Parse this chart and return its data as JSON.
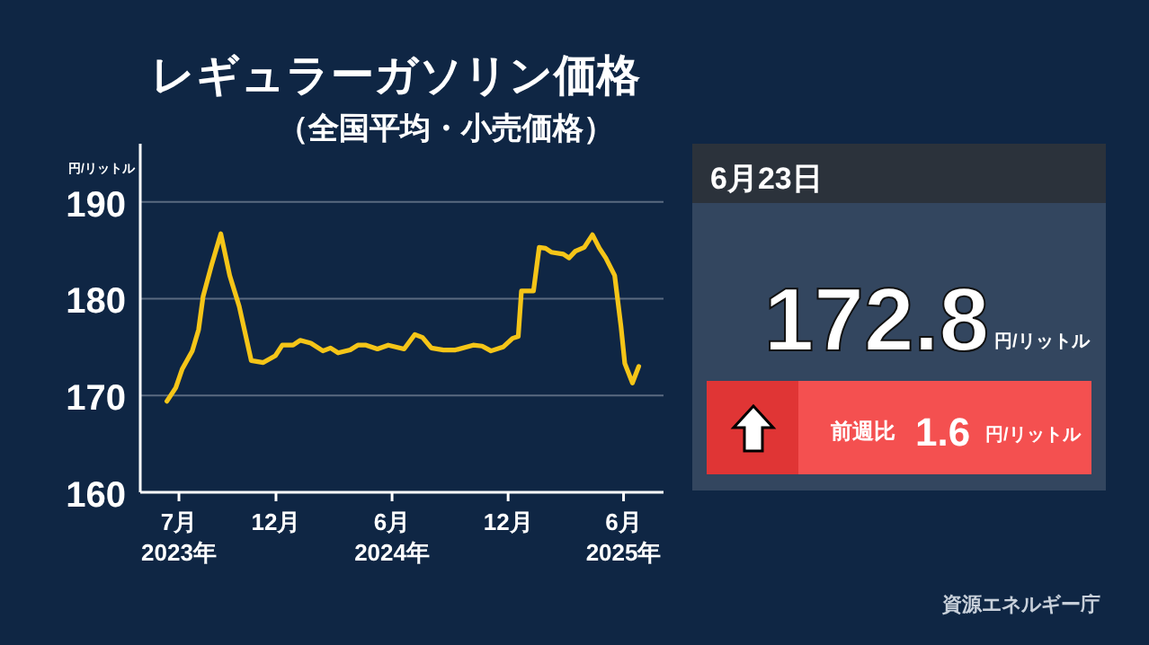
{
  "chart_data": [
    {
      "type": "line",
      "title": "レギュラーガソリン価格",
      "subtitle": "（全国平均・小売価格）",
      "ylabel": "円/リットル",
      "annotations": [
        "資源エネルギー庁"
      ],
      "xlim": [
        "2023-05-01",
        "2025-08-03"
      ],
      "ylim": [
        160,
        196
      ],
      "xticks": [
        {
          "value": "2023-07-01",
          "label": "7月\n2023年"
        },
        {
          "value": "2023-12-01",
          "label": "12月"
        },
        {
          "value": "2024-06-01",
          "label": "6月\n2024年"
        },
        {
          "value": "2024-12-01",
          "label": "12月"
        },
        {
          "value": "2025-06-01",
          "label": "6月\n2025年"
        }
      ],
      "yticks": [
        160,
        170,
        180,
        190
      ],
      "grid": "y",
      "series": [
        {
          "color": "#f5c518",
          "x": [
            "2023-06-12",
            "2023-06-26",
            "2023-07-06",
            "2023-07-22",
            "2023-08-01",
            "2023-08-08",
            "2023-08-22",
            "2023-09-05",
            "2023-09-19",
            "2023-10-04",
            "2023-10-23",
            "2023-11-11",
            "2023-11-30",
            "2023-12-11",
            "2023-12-28",
            "2024-01-08",
            "2024-01-25",
            "2024-02-13",
            "2024-02-25",
            "2024-03-08",
            "2024-03-27",
            "2024-04-08",
            "2024-04-21",
            "2024-05-09",
            "2024-05-26",
            "2024-06-20",
            "2024-07-07",
            "2024-07-19",
            "2024-08-02",
            "2024-08-21",
            "2024-09-09",
            "2024-10-07",
            "2024-10-21",
            "2024-11-04",
            "2024-11-23",
            "2024-12-08",
            "2024-12-17",
            "2024-12-22",
            "2025-01-10",
            "2025-01-19",
            "2025-01-29",
            "2025-02-07",
            "2025-02-26",
            "2025-03-07",
            "2025-03-17",
            "2025-03-31",
            "2025-04-13",
            "2025-04-24",
            "2025-05-04",
            "2025-05-18",
            "2025-05-28",
            "2025-06-03",
            "2025-06-15",
            "2025-06-25"
          ],
          "values": [
            169.4,
            170.8,
            172.7,
            174.6,
            176.8,
            180.2,
            183.6,
            186.7,
            182.4,
            179.2,
            173.6,
            173.4,
            174.1,
            175.2,
            175.2,
            175.7,
            175.4,
            174.6,
            174.9,
            174.4,
            174.7,
            175.2,
            175.2,
            174.8,
            175.2,
            174.8,
            176.3,
            176.0,
            174.9,
            174.7,
            174.7,
            175.2,
            175.1,
            174.6,
            175.0,
            175.9,
            176.1,
            180.8,
            180.8,
            185.3,
            185.2,
            184.8,
            184.6,
            184.2,
            184.9,
            185.3,
            186.6,
            185.2,
            184.2,
            182.4,
            177.1,
            173.3,
            171.3,
            173.0
          ]
        }
      ]
    },
    {
      "type": "other",
      "annotations": [
        "6月23日",
        "172.8",
        "円/リットル",
        "前週比",
        "1.6",
        "円/リットル"
      ]
    }
  ]
}
